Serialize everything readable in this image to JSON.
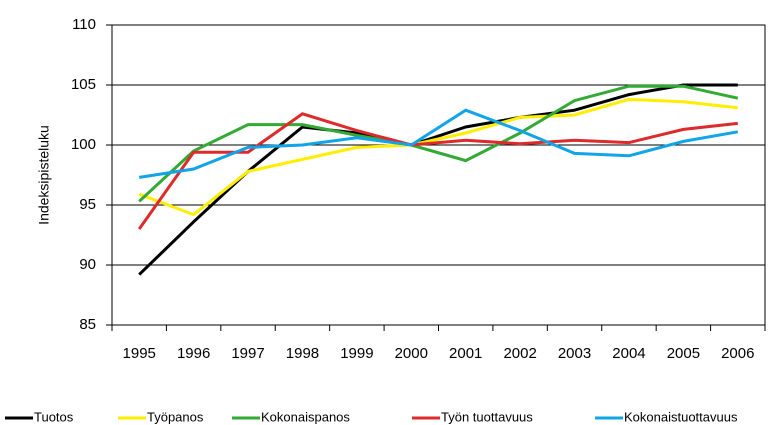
{
  "chart_data": {
    "type": "line",
    "y_label": "Indeksipisteluku",
    "categories": [
      "1995",
      "1996",
      "1997",
      "1998",
      "1999",
      "2000",
      "2001",
      "2002",
      "2003",
      "2004",
      "2005",
      "2006"
    ],
    "ylim": [
      85,
      110
    ],
    "yticks": [
      85,
      90,
      95,
      100,
      105,
      110
    ],
    "grid": true,
    "legend": "bottom",
    "series": [
      {
        "name": "Tuotos",
        "color": "#000000",
        "values": [
          89.2,
          93.6,
          97.8,
          101.5,
          101.0,
          100,
          101.5,
          102.3,
          102.9,
          104.2,
          105.0,
          105.0
        ]
      },
      {
        "name": "Työpanos",
        "color": "#ffee00",
        "values": [
          95.9,
          94.2,
          97.8,
          98.8,
          99.8,
          100,
          101.0,
          102.3,
          102.5,
          103.8,
          103.6,
          103.1
        ]
      },
      {
        "name": "Kokonaispanos",
        "color": "#33aa33",
        "values": [
          95.3,
          99.5,
          101.7,
          101.7,
          100.8,
          100,
          98.7,
          101.0,
          103.7,
          104.9,
          104.9,
          103.9
        ]
      },
      {
        "name": "Työn tuottavuus",
        "color": "#dd2a2a",
        "values": [
          93.0,
          99.4,
          99.4,
          102.6,
          101.2,
          100,
          100.4,
          100.1,
          100.4,
          100.2,
          101.3,
          101.8
        ]
      },
      {
        "name": "Kokonaistuottavuus",
        "color": "#11a4e8",
        "values": [
          97.3,
          98.0,
          99.8,
          100.0,
          100.6,
          100,
          102.9,
          101.2,
          99.3,
          99.1,
          100.3,
          101.1
        ]
      }
    ]
  }
}
